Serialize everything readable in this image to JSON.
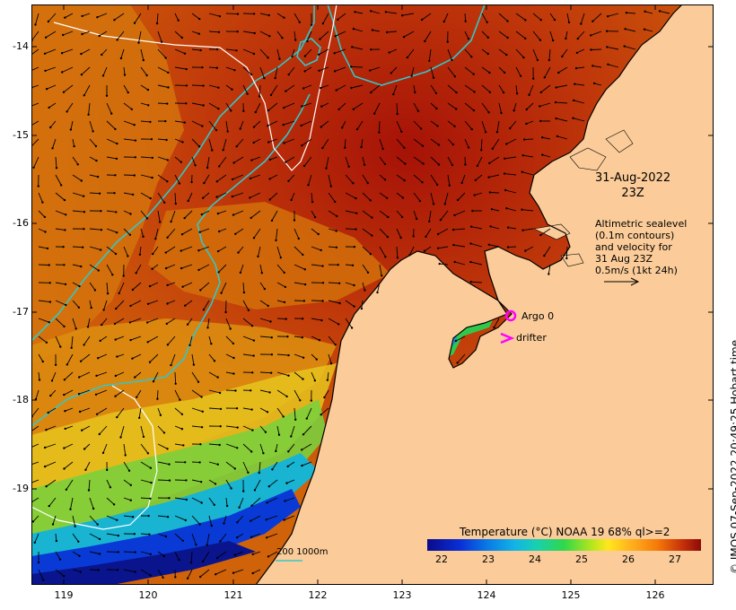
{
  "map": {
    "latitude_ticks": [
      "-14",
      "-15",
      "-16",
      "-17",
      "-18",
      "-19"
    ],
    "longitude_ticks": [
      "119",
      "120",
      "121",
      "122",
      "123",
      "124",
      "125",
      "126"
    ],
    "date_line1": "31-Aug-2022",
    "date_line2": "23Z",
    "info_lines": [
      "Altimetric sealevel",
      "(0.1m contours)",
      "and velocity for",
      "31 Aug 23Z",
      "0.5m/s (1kt 24h)"
    ],
    "argo_label": "Argo 0",
    "drifter_label": "drifter",
    "bathymetry_label": "200  1000m",
    "credit": "©  IMOS 07-Sep-2022 20:49:25 Hobart time",
    "colors": {
      "land": "#fbcc99",
      "argo_marker": "#ff00ff",
      "drifter_marker": "#ff00ff",
      "contour_sealevel": "#ffffff",
      "isobath": "#34c6c6",
      "vector": "#000000"
    }
  },
  "colorbar": {
    "title": "Temperature (°C) NOAA 19 68% ql>=2",
    "ticks": [
      "22",
      "23",
      "24",
      "25",
      "26",
      "27"
    ],
    "range": [
      21.7,
      27.6
    ]
  }
}
